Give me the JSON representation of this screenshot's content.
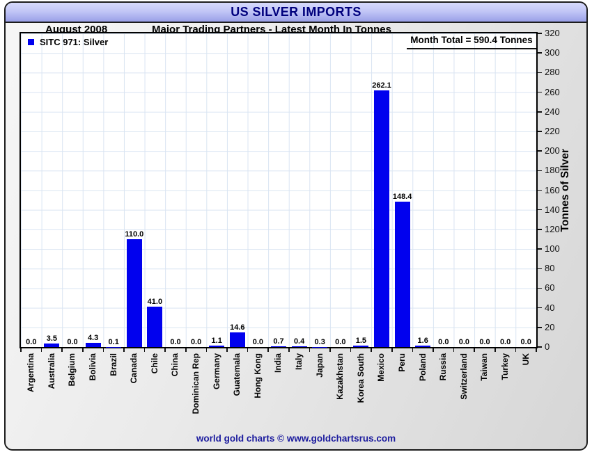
{
  "header": {
    "title": "US SILVER IMPORTS"
  },
  "subheader": {
    "period": "August 2008",
    "title": "Major Trading Partners - Latest Month In Tonnes"
  },
  "legend": {
    "label": "SITC 971: Silver"
  },
  "annotations": {
    "month_total": "Month Total = 590.4 Tonnes"
  },
  "footer": {
    "credit": "world gold charts © www.goldchartsrus.com"
  },
  "colors": {
    "bar": "#0101ee",
    "title_text": "#00007d",
    "footer_text": "#1b1b9e",
    "grid": "#d9e4f2",
    "titlebar_top": "#d7dafc",
    "titlebar_bottom": "#9aa0e8"
  },
  "chart_data": {
    "type": "bar",
    "title": "US SILVER IMPORTS",
    "subtitle": "Major Trading Partners - Latest Month In Tonnes",
    "period": "August 2008",
    "series_name": "SITC 971: Silver",
    "month_total_tonnes": 590.4,
    "categories": [
      "Argentina",
      "Australia",
      "Belgium",
      "Bolivia",
      "Brazil",
      "Canada",
      "Chile",
      "China",
      "Dominican Rep",
      "Germany",
      "Guatemala",
      "Hong Kong",
      "India",
      "Italy",
      "Japan",
      "Kazakhstan",
      "Korea South",
      "Mexico",
      "Peru",
      "Poland",
      "Russia",
      "Switzerland",
      "Taiwan",
      "Turkey",
      "UK"
    ],
    "values": [
      0.0,
      3.5,
      0.0,
      4.3,
      0.1,
      110.0,
      41.0,
      0.0,
      0.0,
      1.1,
      14.6,
      0.0,
      0.7,
      0.4,
      0.3,
      0.0,
      1.5,
      262.1,
      148.4,
      1.6,
      0.0,
      0.0,
      0.0,
      0.0,
      0.0
    ],
    "xlabel": "",
    "ylabel": "Tonnes of Silver",
    "ylim": [
      0,
      320
    ],
    "ytick_step": 20,
    "grid": true,
    "legend_position": "top-left",
    "value_labels_shown": true,
    "bar_color": "#0101ee"
  }
}
